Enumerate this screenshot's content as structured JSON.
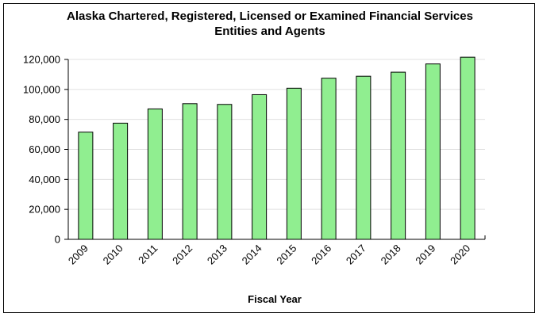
{
  "chart_data": {
    "type": "bar",
    "title_line1": "Alaska Chartered, Registered, Licensed or Examined Financial Services",
    "title_line2": "Entities and Agents",
    "xlabel": "Fiscal Year",
    "ylabel": "",
    "categories": [
      "2009",
      "2010",
      "2011",
      "2012",
      "2013",
      "2014",
      "2015",
      "2016",
      "2017",
      "2018",
      "2019",
      "2020"
    ],
    "values": [
      71500,
      77500,
      87000,
      90500,
      90000,
      96500,
      100800,
      107500,
      108800,
      111500,
      117000,
      121500
    ],
    "ylim": [
      0,
      120000
    ],
    "yticks": [
      0,
      20000,
      40000,
      60000,
      80000,
      100000,
      120000
    ],
    "ytick_labels": [
      "0",
      "20,000",
      "40,000",
      "60,000",
      "80,000",
      "100,000",
      "120,000"
    ],
    "grid": true,
    "bar_color": "#90ee90",
    "bar_edge_color": "#000000",
    "grid_color": "#e0e0e0"
  }
}
